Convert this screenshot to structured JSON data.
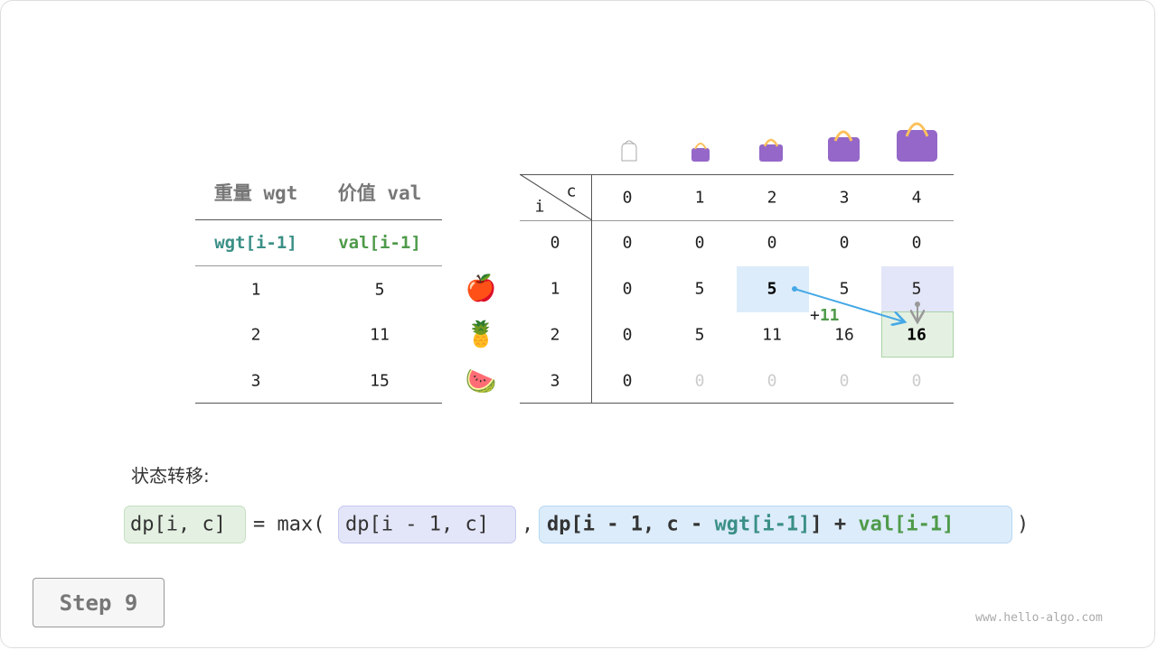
{
  "left_table": {
    "headers": [
      "重量 wgt",
      "价值 val"
    ],
    "subheaders": [
      "wgt[i-1]",
      "val[i-1]"
    ],
    "rows": [
      [
        "1",
        "5"
      ],
      [
        "2",
        "11"
      ],
      [
        "3",
        "15"
      ]
    ],
    "items": [
      "🍎",
      "🍍",
      "🍉"
    ]
  },
  "dp_table": {
    "corner_i": "i",
    "corner_c": "c",
    "col_headers": [
      "0",
      "1",
      "2",
      "3",
      "4"
    ],
    "row_headers": [
      "0",
      "1",
      "2",
      "3"
    ],
    "rows": [
      [
        "0",
        "0",
        "0",
        "0",
        "0"
      ],
      [
        "0",
        "5",
        "5",
        "5",
        "5"
      ],
      [
        "0",
        "5",
        "11",
        "16",
        "16"
      ],
      [
        "0",
        "0",
        "0",
        "0",
        "0"
      ]
    ],
    "bag_icons": [
      "bag-empty-icon",
      "bag-icon",
      "bag-icon",
      "bag-icon",
      "bag-icon"
    ],
    "annotation": {
      "plus": "+",
      "value": "11"
    },
    "colors": {
      "source_cell": "#dcecfa",
      "prev_cell": "#e3e5f8",
      "result_cell": "#e4f1e2",
      "arrow": "#45a8e6",
      "bag": "#9467c8",
      "handle": "#fcc15c"
    }
  },
  "transition": {
    "label": "状态转移:",
    "lhs": "dp[i, c]",
    "eq": "= max(",
    "opt1": "dp[i - 1, c]",
    "comma": ",",
    "opt2_a": "dp[i - 1, c - ",
    "opt2_wgt": "wgt[i-1]",
    "opt2_b": "] + ",
    "opt2_val": "val[i-1]",
    "close": ")"
  },
  "step_label": "Step 9",
  "watermark": "www.hello-algo.com"
}
